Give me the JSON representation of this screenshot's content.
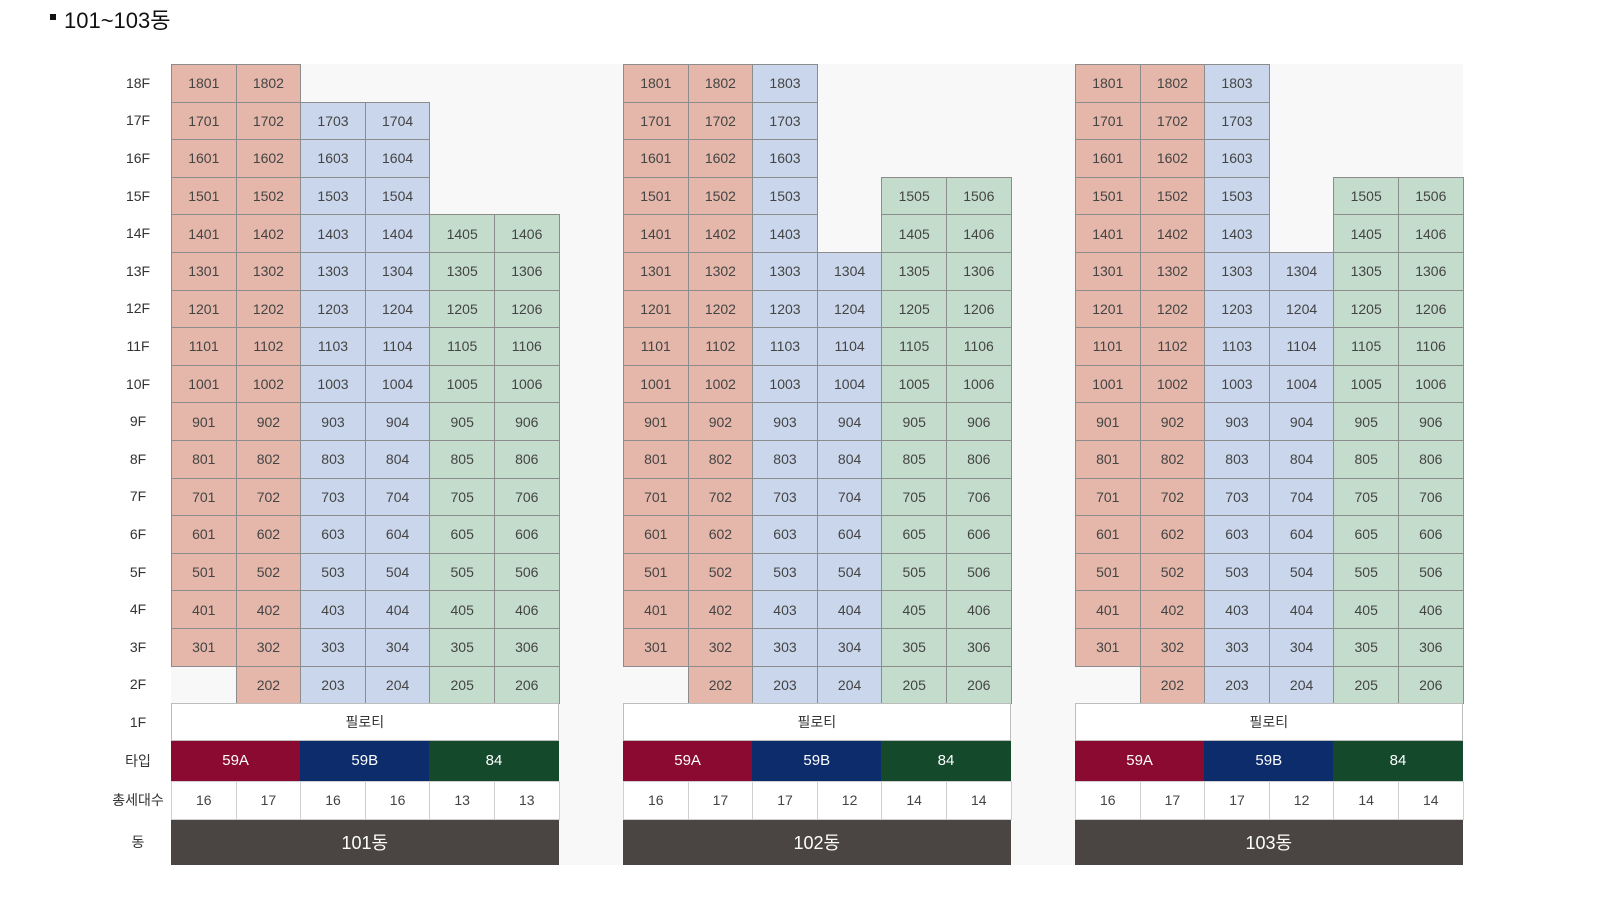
{
  "header": {
    "title": "101~103동"
  },
  "row_labels": {
    "floors": [
      "18F",
      "17F",
      "16F",
      "15F",
      "14F",
      "13F",
      "12F",
      "11F",
      "10F",
      "9F",
      "8F",
      "7F",
      "6F",
      "5F",
      "4F",
      "3F",
      "2F",
      "1F"
    ],
    "type": "타입",
    "count": "총세대수",
    "building": "동"
  },
  "buildings": [
    {
      "name": "101동",
      "pilotis": "필로티",
      "types": [
        {
          "name": "59A",
          "color": "#8b0a32",
          "unit_color": "#e4b7aa"
        },
        {
          "name": "59B",
          "color": "#0c2c6b",
          "unit_color": "#c9d6eb"
        },
        {
          "name": "84",
          "color": "#15492c",
          "unit_color": "#c4dccb"
        }
      ],
      "counts": [
        16,
        17,
        16,
        16,
        13,
        13
      ],
      "units": [
        [
          1801,
          1802,
          null,
          null,
          null,
          null
        ],
        [
          1701,
          1702,
          1703,
          1704,
          null,
          null
        ],
        [
          1601,
          1602,
          1603,
          1604,
          null,
          null
        ],
        [
          1501,
          1502,
          1503,
          1504,
          null,
          null
        ],
        [
          1401,
          1402,
          1403,
          1404,
          1405,
          1406
        ],
        [
          1301,
          1302,
          1303,
          1304,
          1305,
          1306
        ],
        [
          1201,
          1202,
          1203,
          1204,
          1205,
          1206
        ],
        [
          1101,
          1102,
          1103,
          1104,
          1105,
          1106
        ],
        [
          1001,
          1002,
          1003,
          1004,
          1005,
          1006
        ],
        [
          901,
          902,
          903,
          904,
          905,
          906
        ],
        [
          801,
          802,
          803,
          804,
          805,
          806
        ],
        [
          701,
          702,
          703,
          704,
          705,
          706
        ],
        [
          601,
          602,
          603,
          604,
          605,
          606
        ],
        [
          501,
          502,
          503,
          504,
          505,
          506
        ],
        [
          401,
          402,
          403,
          404,
          405,
          406
        ],
        [
          301,
          302,
          303,
          304,
          305,
          306
        ],
        [
          null,
          202,
          203,
          204,
          205,
          206
        ]
      ]
    },
    {
      "name": "102동",
      "pilotis": "필로티",
      "types": [
        {
          "name": "59A",
          "color": "#8b0a32",
          "unit_color": "#e4b7aa"
        },
        {
          "name": "59B",
          "color": "#0c2c6b",
          "unit_color": "#c9d6eb"
        },
        {
          "name": "84",
          "color": "#15492c",
          "unit_color": "#c4dccb"
        }
      ],
      "counts": [
        16,
        17,
        17,
        12,
        14,
        14
      ],
      "units": [
        [
          1801,
          1802,
          1803,
          null,
          null,
          null
        ],
        [
          1701,
          1702,
          1703,
          null,
          null,
          null
        ],
        [
          1601,
          1602,
          1603,
          null,
          null,
          null
        ],
        [
          1501,
          1502,
          1503,
          null,
          1505,
          1506
        ],
        [
          1401,
          1402,
          1403,
          null,
          1405,
          1406
        ],
        [
          1301,
          1302,
          1303,
          1304,
          1305,
          1306
        ],
        [
          1201,
          1202,
          1203,
          1204,
          1205,
          1206
        ],
        [
          1101,
          1102,
          1103,
          1104,
          1105,
          1106
        ],
        [
          1001,
          1002,
          1003,
          1004,
          1005,
          1006
        ],
        [
          901,
          902,
          903,
          904,
          905,
          906
        ],
        [
          801,
          802,
          803,
          804,
          805,
          806
        ],
        [
          701,
          702,
          703,
          704,
          705,
          706
        ],
        [
          601,
          602,
          603,
          604,
          605,
          606
        ],
        [
          501,
          502,
          503,
          504,
          505,
          506
        ],
        [
          401,
          402,
          403,
          404,
          405,
          406
        ],
        [
          301,
          302,
          303,
          304,
          305,
          306
        ],
        [
          null,
          202,
          203,
          204,
          205,
          206
        ]
      ]
    },
    {
      "name": "103동",
      "pilotis": "필로티",
      "types": [
        {
          "name": "59A",
          "color": "#8b0a32",
          "unit_color": "#e4b7aa"
        },
        {
          "name": "59B",
          "color": "#0c2c6b",
          "unit_color": "#c9d6eb"
        },
        {
          "name": "84",
          "color": "#15492c",
          "unit_color": "#c4dccb"
        }
      ],
      "counts": [
        16,
        17,
        17,
        12,
        14,
        14
      ],
      "units": [
        [
          1801,
          1802,
          1803,
          null,
          null,
          null
        ],
        [
          1701,
          1702,
          1703,
          null,
          null,
          null
        ],
        [
          1601,
          1602,
          1603,
          null,
          null,
          null
        ],
        [
          1501,
          1502,
          1503,
          null,
          1505,
          1506
        ],
        [
          1401,
          1402,
          1403,
          null,
          1405,
          1406
        ],
        [
          1301,
          1302,
          1303,
          1304,
          1305,
          1306
        ],
        [
          1201,
          1202,
          1203,
          1204,
          1205,
          1206
        ],
        [
          1101,
          1102,
          1103,
          1104,
          1105,
          1106
        ],
        [
          1001,
          1002,
          1003,
          1004,
          1005,
          1006
        ],
        [
          901,
          902,
          903,
          904,
          905,
          906
        ],
        [
          801,
          802,
          803,
          804,
          805,
          806
        ],
        [
          701,
          702,
          703,
          704,
          705,
          706
        ],
        [
          601,
          602,
          603,
          604,
          605,
          606
        ],
        [
          501,
          502,
          503,
          504,
          505,
          506
        ],
        [
          401,
          402,
          403,
          404,
          405,
          406
        ],
        [
          301,
          302,
          303,
          304,
          305,
          306
        ],
        [
          null,
          202,
          203,
          204,
          205,
          206
        ]
      ]
    }
  ]
}
